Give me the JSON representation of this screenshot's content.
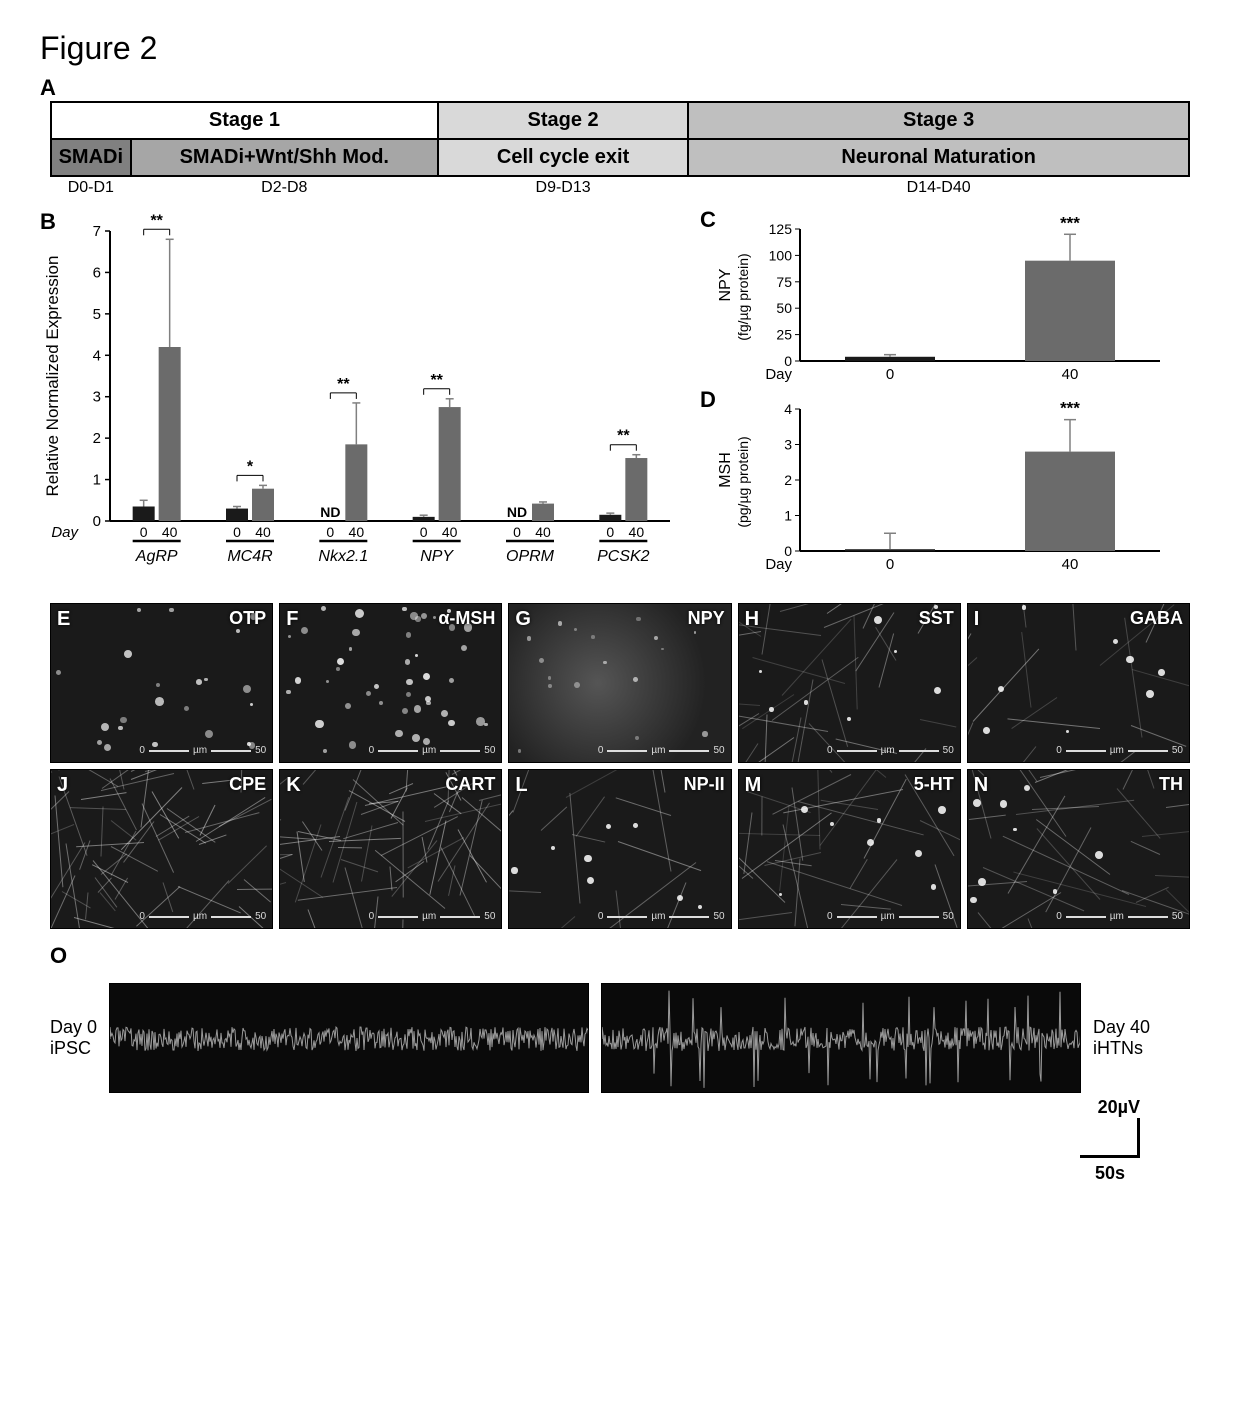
{
  "figure_title": "Figure 2",
  "panelA": {
    "letter": "A",
    "stages": [
      {
        "label": "Stage 1",
        "bg": "#ffffff",
        "colspan": 2,
        "width_pct": 34
      },
      {
        "label": "Stage 2",
        "bg": "#d9d9d9",
        "colspan": 1,
        "width_pct": 22
      },
      {
        "label": "Stage 3",
        "bg": "#bfbfbf",
        "colspan": 1,
        "width_pct": 44
      }
    ],
    "phases": [
      {
        "label": "SMADi",
        "bg": "#808080",
        "width_pct": 7
      },
      {
        "label": "SMADi+Wnt/Shh Mod.",
        "bg": "#a6a6a6",
        "width_pct": 27
      },
      {
        "label": "Cell cycle exit",
        "bg": "#d9d9d9",
        "width_pct": 22
      },
      {
        "label": "Neuronal Maturation",
        "bg": "#bfbfbf",
        "width_pct": 44
      }
    ],
    "days": [
      {
        "label": "D0-D1",
        "width_pct": 7
      },
      {
        "label": "D2-D8",
        "width_pct": 27
      },
      {
        "label": "D9-D13",
        "width_pct": 22
      },
      {
        "label": "D14-D40",
        "width_pct": 44
      }
    ]
  },
  "panelB": {
    "letter": "B",
    "ylabel": "Relative Normalized Expression",
    "ylim": [
      0,
      7
    ],
    "ytick_step": 1,
    "xlabel_prefix": "Day",
    "x_ticks": [
      "0",
      "40"
    ],
    "genes": [
      "AgRP",
      "MC4R",
      "Nkx2.1",
      "NPY",
      "OPRM",
      "PCSK2"
    ],
    "bars": [
      {
        "gene": "AgRP",
        "d0": 0.35,
        "d0_err": 0.15,
        "d40": 4.2,
        "d40_err": 2.6,
        "sig": "**",
        "nd": false
      },
      {
        "gene": "MC4R",
        "d0": 0.3,
        "d0_err": 0.05,
        "d40": 0.78,
        "d40_err": 0.08,
        "sig": "*",
        "nd": false
      },
      {
        "gene": "Nkx2.1",
        "d0": 0.0,
        "d0_err": 0.0,
        "d40": 1.85,
        "d40_err": 1.0,
        "sig": "**",
        "nd": true
      },
      {
        "gene": "NPY",
        "d0": 0.1,
        "d0_err": 0.04,
        "d40": 2.75,
        "d40_err": 0.2,
        "sig": "**",
        "nd": false
      },
      {
        "gene": "OPRM",
        "d0": 0.0,
        "d0_err": 0.0,
        "d40": 0.42,
        "d40_err": 0.04,
        "sig": "",
        "nd": true
      },
      {
        "gene": "PCSK2",
        "d0": 0.15,
        "d0_err": 0.04,
        "d40": 1.52,
        "d40_err": 0.08,
        "sig": "**",
        "nd": false
      }
    ],
    "d0_color": "#1a1a1a",
    "d40_color": "#6b6b6b",
    "nd_label": "ND"
  },
  "panelC": {
    "letter": "C",
    "ylabel": "NPY",
    "yunits": "(fg/µg protein)",
    "ylim": [
      0,
      125
    ],
    "ytick_step": 25,
    "bars": [
      {
        "x": "0",
        "val": 4,
        "err": 2,
        "color": "#1a1a1a"
      },
      {
        "x": "40",
        "val": 95,
        "err": 25,
        "color": "#6b6b6b"
      }
    ],
    "sig": "***",
    "xlabel": "Day"
  },
  "panelD": {
    "letter": "D",
    "ylabel": "MSH",
    "yunits": "(pg/µg protein)",
    "ylim": [
      0,
      4
    ],
    "ytick_step": 1,
    "bars": [
      {
        "x": "0",
        "val": 0.05,
        "err": 0.45,
        "color": "#1a1a1a"
      },
      {
        "x": "40",
        "val": 2.8,
        "err": 0.9,
        "color": "#6b6b6b"
      }
    ],
    "sig": "***",
    "xlabel": "Day"
  },
  "micrographs": [
    {
      "letter": "E",
      "label": "OTP",
      "scale": "50",
      "unit": "µm",
      "pattern": "dots"
    },
    {
      "letter": "F",
      "label": "α-MSH",
      "scale": "50",
      "unit": "µm",
      "pattern": "dots_dense"
    },
    {
      "letter": "G",
      "label": "NPY",
      "scale": "50",
      "unit": "µm",
      "pattern": "diffuse"
    },
    {
      "letter": "H",
      "label": "SST",
      "scale": "50",
      "unit": "µm",
      "pattern": "fibers"
    },
    {
      "letter": "I",
      "label": "GABA",
      "scale": "50",
      "unit": "µm",
      "pattern": "fibers_sparse"
    },
    {
      "letter": "J",
      "label": "CPE",
      "scale": "50",
      "unit": "µm",
      "pattern": "dense"
    },
    {
      "letter": "K",
      "label": "CART",
      "scale": "50",
      "unit": "µm",
      "pattern": "dense"
    },
    {
      "letter": "L",
      "label": "NP-II",
      "scale": "50",
      "unit": "µm",
      "pattern": "fibers_sparse"
    },
    {
      "letter": "M",
      "label": "5-HT",
      "scale": "50",
      "unit": "µm",
      "pattern": "fibers"
    },
    {
      "letter": "N",
      "label": "TH",
      "scale": "50",
      "unit": "µm",
      "pattern": "fibers"
    }
  ],
  "panelO": {
    "letter": "O",
    "left_label_line1": "Day 0",
    "left_label_line2": "iPSC",
    "right_label_line1": "Day 40",
    "right_label_line2": "iHTNs",
    "y_scale": "20µV",
    "x_scale": "50s",
    "noise_color": "#9a9a9a",
    "bg": "#0a0a0a"
  },
  "colors": {
    "axis": "#000000",
    "text": "#000000",
    "error_bar": "#808080"
  }
}
